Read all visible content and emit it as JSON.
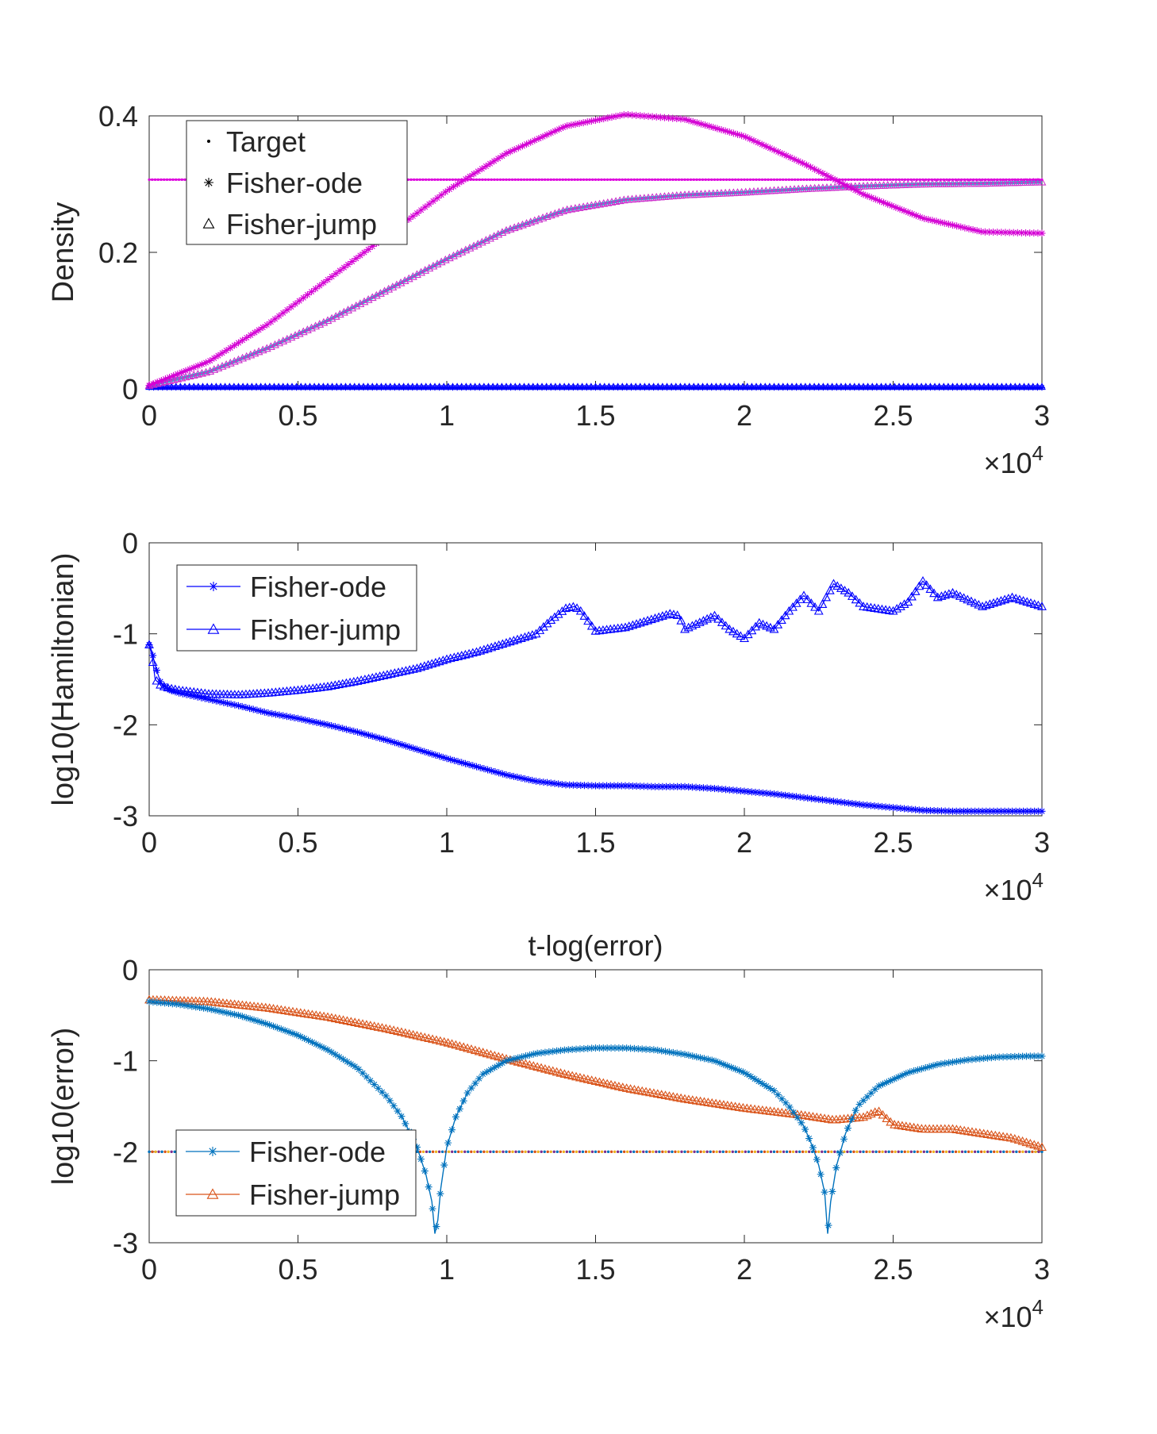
{
  "chart_data": [
    {
      "type": "line",
      "ylabel": "Density",
      "xlim": [
        0,
        30000
      ],
      "ylim": [
        0,
        0.4
      ],
      "xticks": [
        "0",
        "0.5",
        "1",
        "1.5",
        "2",
        "2.5",
        "3"
      ],
      "yticks": [
        "0",
        "0.2",
        "0.4"
      ],
      "x_exponent": "×10",
      "x_exponent_power": "4",
      "legend": {
        "position": "top-left",
        "entries": [
          {
            "label": "Target",
            "marker": "dot"
          },
          {
            "label": "Fisher-ode",
            "marker": "star"
          },
          {
            "label": "Fisher-jump",
            "marker": "triangle"
          }
        ]
      },
      "colors": {
        "target": "#dd00dd",
        "ode": "#d400d4",
        "jump": "#cc33cc",
        "jump_shadow": "#00cccc",
        "low": "#0000ff"
      },
      "series": [
        {
          "name": "Target",
          "x": [
            0,
            30000
          ],
          "y": [
            0.3065,
            0.3065
          ]
        },
        {
          "name": "Fisher-ode",
          "x": [
            0,
            2000,
            4000,
            6000,
            8000,
            10000,
            12000,
            14000,
            16000,
            18000,
            20000,
            22000,
            24000,
            26000,
            28000,
            30000
          ],
          "y": [
            0.005,
            0.04,
            0.095,
            0.16,
            0.225,
            0.29,
            0.345,
            0.385,
            0.402,
            0.395,
            0.37,
            0.33,
            0.285,
            0.25,
            0.23,
            0.228
          ]
        },
        {
          "name": "Fisher-jump",
          "x": [
            0,
            2000,
            4000,
            6000,
            8000,
            10000,
            12000,
            14000,
            16000,
            18000,
            20000,
            22000,
            24000,
            26000,
            28000,
            30000
          ],
          "y": [
            0.005,
            0.025,
            0.06,
            0.1,
            0.145,
            0.19,
            0.232,
            0.262,
            0.277,
            0.284,
            0.288,
            0.293,
            0.297,
            0.3,
            0.301,
            0.303
          ]
        },
        {
          "name": "Fisher-ode (low)",
          "x": [
            0,
            30000
          ],
          "y": [
            0.002,
            0.002
          ]
        },
        {
          "name": "Fisher-jump (low)",
          "x": [
            0,
            30000
          ],
          "y": [
            0.003,
            0.003
          ]
        }
      ]
    },
    {
      "type": "line",
      "ylabel": "log10(Hamiltonian)",
      "xlim": [
        0,
        30000
      ],
      "ylim": [
        -3,
        0
      ],
      "xticks": [
        "0",
        "0.5",
        "1",
        "1.5",
        "2",
        "2.5",
        "3"
      ],
      "yticks": [
        "-3",
        "-2",
        "-1",
        "0"
      ],
      "x_exponent": "×10",
      "x_exponent_power": "4",
      "legend": {
        "position": "top-left",
        "entries": [
          {
            "label": "Fisher-ode",
            "marker": "star"
          },
          {
            "label": "Fisher-jump",
            "marker": "triangle"
          }
        ]
      },
      "colors": {
        "line": "#0000ff"
      },
      "series": [
        {
          "name": "Fisher-ode",
          "x": [
            0,
            100,
            200,
            400,
            700,
            1000,
            2000,
            3000,
            4000,
            5000,
            6000,
            7000,
            8000,
            9000,
            10000,
            11000,
            12000,
            13000,
            14000,
            15000,
            16000,
            17000,
            18000,
            19000,
            20000,
            21000,
            22000,
            23000,
            24000,
            25000,
            26000,
            27000,
            28000,
            29000,
            30000
          ],
          "y": [
            -1.12,
            -1.2,
            -1.35,
            -1.55,
            -1.62,
            -1.65,
            -1.72,
            -1.79,
            -1.87,
            -1.93,
            -2.0,
            -2.08,
            -2.17,
            -2.27,
            -2.37,
            -2.46,
            -2.55,
            -2.62,
            -2.66,
            -2.67,
            -2.67,
            -2.68,
            -2.68,
            -2.7,
            -2.73,
            -2.76,
            -2.8,
            -2.84,
            -2.88,
            -2.91,
            -2.94,
            -2.95,
            -2.95,
            -2.95,
            -2.95
          ]
        },
        {
          "name": "Fisher-jump",
          "x": [
            0,
            100,
            200,
            400,
            700,
            1000,
            2000,
            3000,
            4000,
            5000,
            6000,
            7000,
            8000,
            9000,
            10000,
            11000,
            12000,
            13000,
            13500,
            14000,
            14300,
            14500,
            15000,
            16000,
            17000,
            17500,
            17800,
            18000,
            19000,
            19500,
            20000,
            20500,
            21000,
            21500,
            22000,
            22500,
            23000,
            23500,
            24000,
            25000,
            25500,
            26000,
            26500,
            27000,
            28000,
            29000,
            30000
          ],
          "y": [
            -1.12,
            -1.25,
            -1.5,
            -1.57,
            -1.6,
            -1.62,
            -1.66,
            -1.67,
            -1.65,
            -1.62,
            -1.58,
            -1.52,
            -1.45,
            -1.38,
            -1.28,
            -1.2,
            -1.1,
            -1.0,
            -0.85,
            -0.72,
            -0.7,
            -0.75,
            -0.97,
            -0.93,
            -0.83,
            -0.78,
            -0.8,
            -0.95,
            -0.8,
            -0.95,
            -1.05,
            -0.88,
            -0.95,
            -0.75,
            -0.58,
            -0.75,
            -0.45,
            -0.55,
            -0.7,
            -0.75,
            -0.65,
            -0.42,
            -0.6,
            -0.55,
            -0.7,
            -0.6,
            -0.7
          ]
        }
      ]
    },
    {
      "type": "line",
      "title": "t-log(error)",
      "ylabel": "log10(error)",
      "xlim": [
        0,
        30000
      ],
      "ylim": [
        -3,
        0
      ],
      "xticks": [
        "0",
        "0.5",
        "1",
        "1.5",
        "2",
        "2.5",
        "3"
      ],
      "yticks": [
        "-3",
        "-2",
        "-1",
        "0"
      ],
      "x_exponent": "×10",
      "x_exponent_power": "4",
      "legend": {
        "position": "bottom-left",
        "entries": [
          {
            "label": "Fisher-ode",
            "marker": "star"
          },
          {
            "label": "Fisher-jump",
            "marker": "triangle"
          }
        ]
      },
      "colors": {
        "ode": "#0072bd",
        "jump": "#d95319",
        "ref_dots": [
          "#0072bd",
          "#d95319",
          "#edb120",
          "#7e2f8e"
        ]
      },
      "series": [
        {
          "name": "Fisher-ode",
          "x": [
            0,
            1000,
            2000,
            3000,
            4000,
            5000,
            6000,
            7000,
            8000,
            8500,
            9000,
            9300,
            9500,
            9600,
            9700,
            9800,
            10000,
            10300,
            10700,
            11200,
            12000,
            13000,
            14000,
            15000,
            16000,
            17000,
            18000,
            19000,
            20000,
            21000,
            21500,
            22000,
            22300,
            22500,
            22700,
            22800,
            22900,
            23100,
            23400,
            23800,
            24500,
            25500,
            26500,
            27500,
            28500,
            29500,
            30000
          ],
          "y": [
            -0.35,
            -0.38,
            -0.43,
            -0.5,
            -0.6,
            -0.72,
            -0.88,
            -1.08,
            -1.4,
            -1.62,
            -1.95,
            -2.25,
            -2.55,
            -2.9,
            -2.75,
            -2.4,
            -1.95,
            -1.62,
            -1.35,
            -1.15,
            -1.0,
            -0.92,
            -0.88,
            -0.86,
            -0.86,
            -0.88,
            -0.93,
            -1.0,
            -1.13,
            -1.33,
            -1.5,
            -1.72,
            -1.95,
            -2.15,
            -2.45,
            -2.9,
            -2.55,
            -2.15,
            -1.8,
            -1.5,
            -1.28,
            -1.13,
            -1.04,
            -0.99,
            -0.96,
            -0.95,
            -0.95
          ]
        },
        {
          "name": "Fisher-jump",
          "x": [
            0,
            2000,
            4000,
            6000,
            8000,
            10000,
            12000,
            14000,
            16000,
            18000,
            20000,
            22000,
            23000,
            24000,
            24500,
            25000,
            26000,
            27000,
            28000,
            29000,
            30000
          ],
          "y": [
            -0.33,
            -0.35,
            -0.42,
            -0.52,
            -0.65,
            -0.8,
            -0.98,
            -1.15,
            -1.3,
            -1.42,
            -1.52,
            -1.6,
            -1.65,
            -1.62,
            -1.55,
            -1.7,
            -1.75,
            -1.75,
            -1.8,
            -1.85,
            -1.95
          ]
        },
        {
          "name": "",
          "x": [
            0,
            30000
          ],
          "y": [
            -2,
            -2
          ]
        }
      ]
    }
  ]
}
